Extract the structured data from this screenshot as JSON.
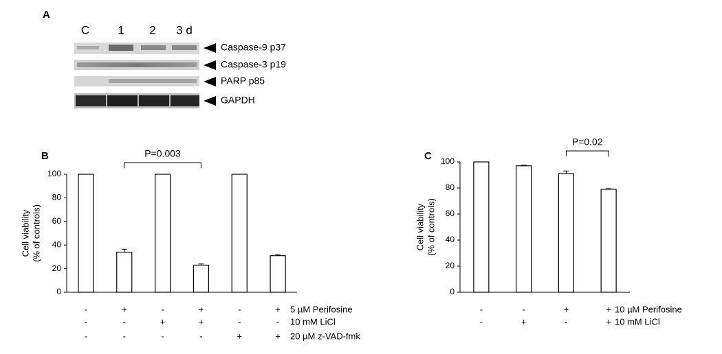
{
  "panel_a": {
    "label": "A",
    "lanes": [
      "C",
      "1",
      "2",
      "3 d"
    ],
    "bands": [
      "Caspase-9 p37",
      "Caspase-3 p19",
      "PARP p85",
      "GAPDH"
    ]
  },
  "chart_data": [
    {
      "type": "bar",
      "panel": "B",
      "ylabel": [
        "Cell viability",
        "(% of controls)"
      ],
      "values": [
        100,
        34,
        100,
        23,
        100,
        31
      ],
      "errors": [
        0,
        2.5,
        0,
        1,
        0,
        1
      ],
      "ylim": [
        0,
        100
      ],
      "yticks": [
        0,
        20,
        40,
        60,
        80,
        100
      ],
      "color": "#ffffff",
      "conditions": [
        {
          "name": "5 µM Perifosine",
          "signs": [
            "-",
            "+",
            "-",
            "+",
            "-",
            "+"
          ]
        },
        {
          "name": "10 mM LiCl",
          "signs": [
            "-",
            "-",
            "+",
            "+",
            "-",
            "-"
          ]
        },
        {
          "name": "20 µM z-VAD-fmk",
          "signs": [
            "-",
            "-",
            "-",
            "-",
            "+",
            "+"
          ]
        }
      ],
      "annotation": "P=0.003"
    },
    {
      "type": "bar",
      "panel": "C",
      "ylabel": [
        "Cell viability",
        "(% of controls)"
      ],
      "values": [
        100,
        97,
        91,
        79
      ],
      "errors": [
        0,
        0.5,
        2,
        0.5
      ],
      "ylim": [
        0,
        100
      ],
      "yticks": [
        0,
        20,
        40,
        60,
        80,
        100
      ],
      "color": "#ffffff",
      "conditions": [
        {
          "name": "10 µM Perifosine",
          "signs": [
            "-",
            "-",
            "+",
            "+"
          ]
        },
        {
          "name": "10 mM LiCl",
          "signs": [
            "-",
            "+",
            "-",
            "+"
          ]
        }
      ],
      "annotation": "P=0.02"
    }
  ]
}
